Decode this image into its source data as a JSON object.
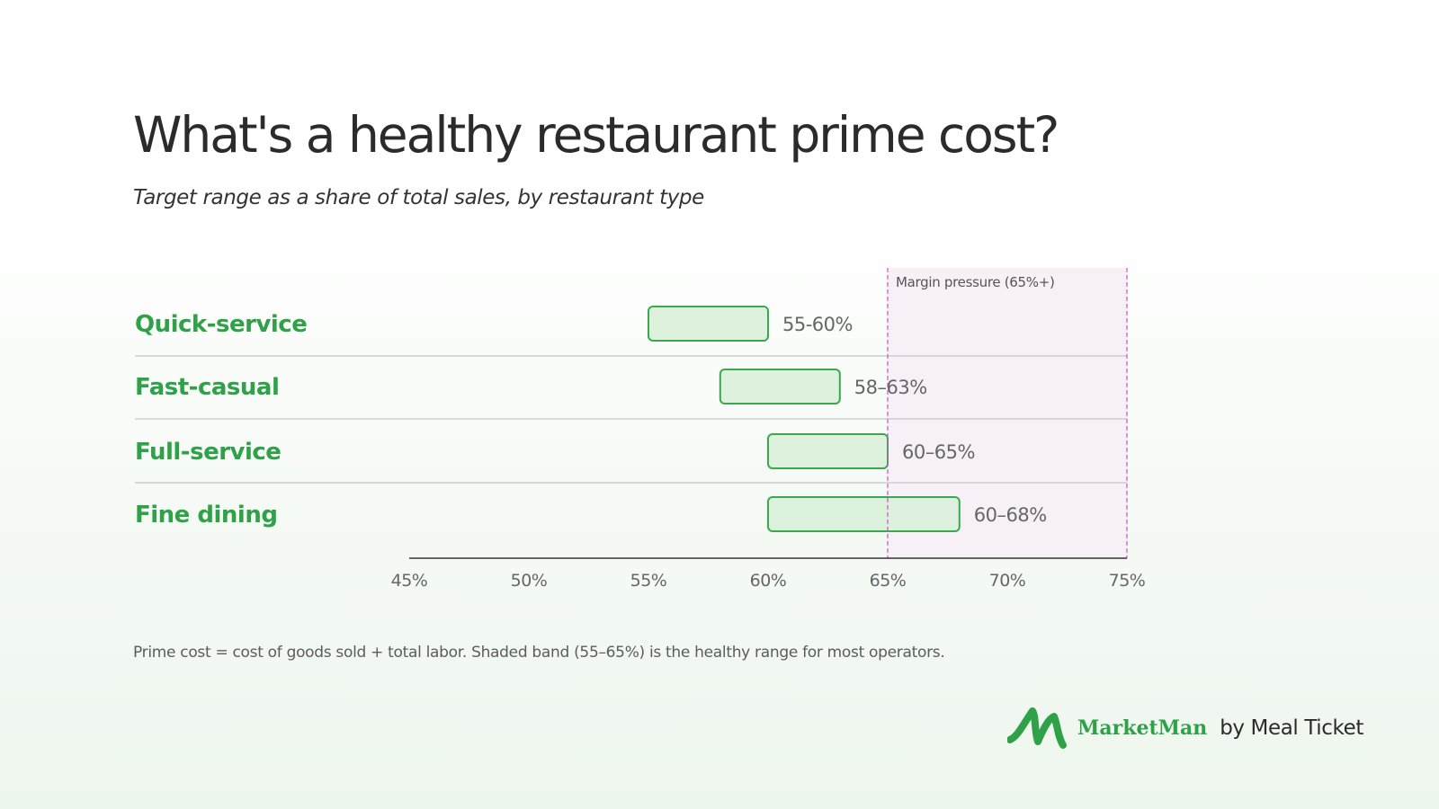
{
  "chart_data": {
    "type": "bar",
    "title": "What's a healthy restaurant prime cost?",
    "subtitle": "Target range as a share of total sales, by restaurant type",
    "categories": [
      "Quick-service",
      "Fast-casual",
      "Full-service",
      "Fine dining"
    ],
    "ranges": [
      {
        "low": 55,
        "high": 60,
        "label": "55-60%"
      },
      {
        "low": 58,
        "high": 63,
        "label": "58–63%"
      },
      {
        "low": 60,
        "high": 65,
        "label": "60–65%"
      },
      {
        "low": 60,
        "high": 68,
        "label": "60–68%"
      }
    ],
    "xlim": [
      45,
      75
    ],
    "xticks": [
      45,
      50,
      55,
      60,
      65,
      70,
      75
    ],
    "xtick_labels": [
      "45%",
      "50%",
      "55%",
      "60%",
      "65%",
      "70%",
      "75%"
    ],
    "annotation": {
      "label": "Margin pressure (65%+)",
      "from": 65,
      "to": 75
    },
    "grid": false
  },
  "footnote": "Prime cost = cost of goods sold + total labor. Shaded band (55–65%) is the healthy range for most operators.",
  "brand": {
    "name": "MarketMan",
    "by": "by Meal Ticket"
  },
  "colors": {
    "category_text": "#2fa148",
    "bar_fill": "#d9f0d9",
    "bar_stroke": "#3aa84f",
    "pressure_band": "#f7f0f7",
    "pressure_line": "#c058c0",
    "axis": "#333333",
    "divider": "#b8b8b8",
    "value_text": "#666666"
  }
}
